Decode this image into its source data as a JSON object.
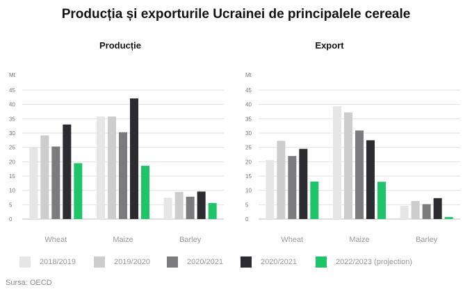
{
  "title": "Producția și exporturile Ucrainei de principalele cereale",
  "source": "Sursa: OECD",
  "colors": [
    "#e6e6e6",
    "#cdcdcd",
    "#7b7b7d",
    "#2b2b30",
    "#1fc468"
  ],
  "legend": [
    "2018/2019",
    "2019/2020",
    "2020/2021",
    "2020/2021",
    "2022/2023 (projection)"
  ],
  "chart_data": [
    {
      "type": "bar",
      "title": "Producție",
      "ylabel": "Mt",
      "ylim": [
        0,
        45
      ],
      "yticks": [
        "0",
        "5",
        "10",
        "15",
        "20",
        "25",
        "30",
        "35",
        "40",
        "45"
      ],
      "categories": [
        "Wheat",
        "Maize",
        "Barley"
      ],
      "series": [
        {
          "name": "2018/2019",
          "values": [
            25.1,
            35.8,
            7.4
          ]
        },
        {
          "name": "2019/2020",
          "values": [
            29.2,
            35.8,
            9.5
          ]
        },
        {
          "name": "2020/2021",
          "values": [
            25.3,
            30.3,
            7.8
          ]
        },
        {
          "name": "2020/2021",
          "values": [
            33.0,
            42.1,
            9.6
          ]
        },
        {
          "name": "2022/2023 (projection)",
          "values": [
            19.5,
            18.6,
            5.6
          ]
        }
      ]
    },
    {
      "type": "bar",
      "title": "Export",
      "ylabel": "Mt",
      "ylim": [
        0,
        45
      ],
      "yticks": [
        "0",
        "5",
        "10",
        "15",
        "20",
        "25",
        "30",
        "35",
        "40",
        "45"
      ],
      "categories": [
        "Wheat",
        "Maize",
        "Barley"
      ],
      "series": [
        {
          "name": "2018/2019",
          "values": [
            20.6,
            39.4,
            4.6
          ]
        },
        {
          "name": "2019/2020",
          "values": [
            27.3,
            37.2,
            6.3
          ]
        },
        {
          "name": "2020/2021",
          "values": [
            22.0,
            30.9,
            5.2
          ]
        },
        {
          "name": "2020/2021",
          "values": [
            24.5,
            27.5,
            7.3
          ]
        },
        {
          "name": "2022/2023 (projection)",
          "values": [
            13.1,
            13.0,
            0.7
          ]
        }
      ]
    }
  ]
}
